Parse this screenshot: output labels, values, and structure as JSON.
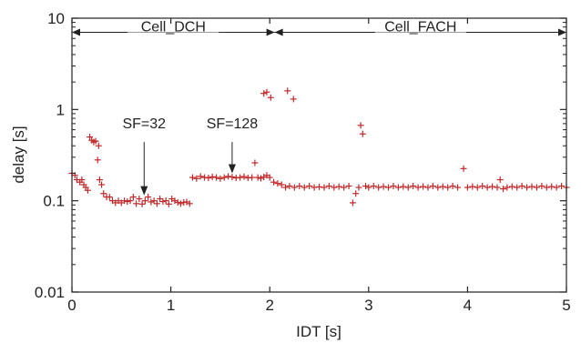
{
  "chart_data": {
    "type": "scatter",
    "xlabel": "IDT [s]",
    "ylabel": "delay [s]",
    "xlim": [
      0,
      5
    ],
    "ylim": [
      0.01,
      10
    ],
    "yscale": "log",
    "grid": false,
    "marker": "+",
    "marker_color": "#c0282a",
    "xticks": [
      {
        "value": 0,
        "label": "0"
      },
      {
        "value": 1,
        "label": "1"
      },
      {
        "value": 2,
        "label": "2"
      },
      {
        "value": 3,
        "label": "3"
      },
      {
        "value": 4,
        "label": "4"
      },
      {
        "value": 5,
        "label": "5"
      }
    ],
    "yticks": [
      {
        "value": 0.01,
        "label": "0.01"
      },
      {
        "value": 0.1,
        "label": "0.1"
      },
      {
        "value": 1,
        "label": "1"
      },
      {
        "value": 10,
        "label": "10"
      }
    ],
    "state_ranges": [
      {
        "label": "Cell_DCH",
        "x_start": 0,
        "x_end": 2.05,
        "y": 7
      },
      {
        "label": "Cell_FACH",
        "x_start": 2.05,
        "x_end": 5,
        "y": 7
      }
    ],
    "annotations": [
      {
        "text": "SF=32",
        "x": 0.73,
        "y_text": 0.62,
        "arrow_from": 0.44,
        "arrow_to": 0.115
      },
      {
        "text": "SF=128",
        "x": 1.62,
        "y_text": 0.62,
        "arrow_from": 0.44,
        "arrow_to": 0.2
      }
    ],
    "points": [
      [
        0.0,
        0.2
      ],
      [
        0.03,
        0.19
      ],
      [
        0.05,
        0.17
      ],
      [
        0.08,
        0.16
      ],
      [
        0.1,
        0.17
      ],
      [
        0.12,
        0.15
      ],
      [
        0.14,
        0.14
      ],
      [
        0.16,
        0.13
      ],
      [
        0.18,
        0.5
      ],
      [
        0.2,
        0.46
      ],
      [
        0.22,
        0.44
      ],
      [
        0.24,
        0.45
      ],
      [
        0.26,
        0.28
      ],
      [
        0.27,
        0.4
      ],
      [
        0.28,
        0.17
      ],
      [
        0.3,
        0.15
      ],
      [
        0.32,
        0.12
      ],
      [
        0.35,
        0.11
      ],
      [
        0.38,
        0.11
      ],
      [
        0.41,
        0.1
      ],
      [
        0.44,
        0.095
      ],
      [
        0.47,
        0.1
      ],
      [
        0.5,
        0.095
      ],
      [
        0.53,
        0.1
      ],
      [
        0.56,
        0.098
      ],
      [
        0.59,
        0.1
      ],
      [
        0.62,
        0.11
      ],
      [
        0.65,
        0.093
      ],
      [
        0.68,
        0.105
      ],
      [
        0.71,
        0.092
      ],
      [
        0.74,
        0.1
      ],
      [
        0.77,
        0.11
      ],
      [
        0.8,
        0.097
      ],
      [
        0.83,
        0.1
      ],
      [
        0.86,
        0.093
      ],
      [
        0.89,
        0.105
      ],
      [
        0.92,
        0.098
      ],
      [
        0.95,
        0.1
      ],
      [
        0.98,
        0.092
      ],
      [
        1.01,
        0.105
      ],
      [
        1.04,
        0.1
      ],
      [
        1.07,
        0.096
      ],
      [
        1.1,
        0.093
      ],
      [
        1.13,
        0.096
      ],
      [
        1.16,
        0.097
      ],
      [
        1.19,
        0.093
      ],
      [
        1.22,
        0.18
      ],
      [
        1.26,
        0.175
      ],
      [
        1.3,
        0.185
      ],
      [
        1.34,
        0.18
      ],
      [
        1.38,
        0.178
      ],
      [
        1.42,
        0.183
      ],
      [
        1.46,
        0.18
      ],
      [
        1.5,
        0.175
      ],
      [
        1.54,
        0.18
      ],
      [
        1.58,
        0.185
      ],
      [
        1.62,
        0.182
      ],
      [
        1.66,
        0.178
      ],
      [
        1.7,
        0.18
      ],
      [
        1.74,
        0.184
      ],
      [
        1.78,
        0.178
      ],
      [
        1.82,
        0.18
      ],
      [
        1.85,
        0.26
      ],
      [
        1.88,
        0.18
      ],
      [
        1.91,
        0.176
      ],
      [
        1.94,
        0.182
      ],
      [
        1.97,
        0.19
      ],
      [
        2.0,
        0.18
      ],
      [
        1.94,
        1.5
      ],
      [
        1.97,
        1.55
      ],
      [
        2.01,
        1.35
      ],
      [
        2.18,
        1.6
      ],
      [
        2.24,
        1.3
      ],
      [
        2.04,
        0.16
      ],
      [
        2.08,
        0.155
      ],
      [
        2.12,
        0.15
      ],
      [
        2.16,
        0.14
      ],
      [
        2.2,
        0.145
      ],
      [
        2.25,
        0.14
      ],
      [
        2.3,
        0.145
      ],
      [
        2.35,
        0.14
      ],
      [
        2.4,
        0.145
      ],
      [
        2.45,
        0.14
      ],
      [
        2.5,
        0.142
      ],
      [
        2.55,
        0.14
      ],
      [
        2.6,
        0.145
      ],
      [
        2.65,
        0.14
      ],
      [
        2.7,
        0.143
      ],
      [
        2.75,
        0.14
      ],
      [
        2.8,
        0.145
      ],
      [
        2.84,
        0.095
      ],
      [
        2.87,
        0.12
      ],
      [
        2.9,
        0.14
      ],
      [
        2.92,
        0.67
      ],
      [
        2.94,
        0.54
      ],
      [
        2.97,
        0.145
      ],
      [
        3.0,
        0.14
      ],
      [
        3.05,
        0.145
      ],
      [
        3.1,
        0.14
      ],
      [
        3.15,
        0.143
      ],
      [
        3.2,
        0.14
      ],
      [
        3.25,
        0.145
      ],
      [
        3.3,
        0.14
      ],
      [
        3.35,
        0.143
      ],
      [
        3.4,
        0.14
      ],
      [
        3.45,
        0.145
      ],
      [
        3.5,
        0.14
      ],
      [
        3.55,
        0.143
      ],
      [
        3.6,
        0.14
      ],
      [
        3.65,
        0.145
      ],
      [
        3.7,
        0.14
      ],
      [
        3.75,
        0.143
      ],
      [
        3.8,
        0.14
      ],
      [
        3.85,
        0.145
      ],
      [
        3.9,
        0.14
      ],
      [
        3.96,
        0.225
      ],
      [
        4.0,
        0.14
      ],
      [
        4.05,
        0.143
      ],
      [
        4.1,
        0.14
      ],
      [
        4.15,
        0.145
      ],
      [
        4.2,
        0.14
      ],
      [
        4.25,
        0.143
      ],
      [
        4.3,
        0.14
      ],
      [
        4.33,
        0.17
      ],
      [
        4.36,
        0.135
      ],
      [
        4.4,
        0.14
      ],
      [
        4.45,
        0.143
      ],
      [
        4.5,
        0.14
      ],
      [
        4.55,
        0.145
      ],
      [
        4.6,
        0.14
      ],
      [
        4.65,
        0.143
      ],
      [
        4.7,
        0.14
      ],
      [
        4.75,
        0.145
      ],
      [
        4.8,
        0.14
      ],
      [
        4.85,
        0.143
      ],
      [
        4.9,
        0.14
      ],
      [
        4.95,
        0.145
      ],
      [
        5.0,
        0.14
      ]
    ]
  }
}
